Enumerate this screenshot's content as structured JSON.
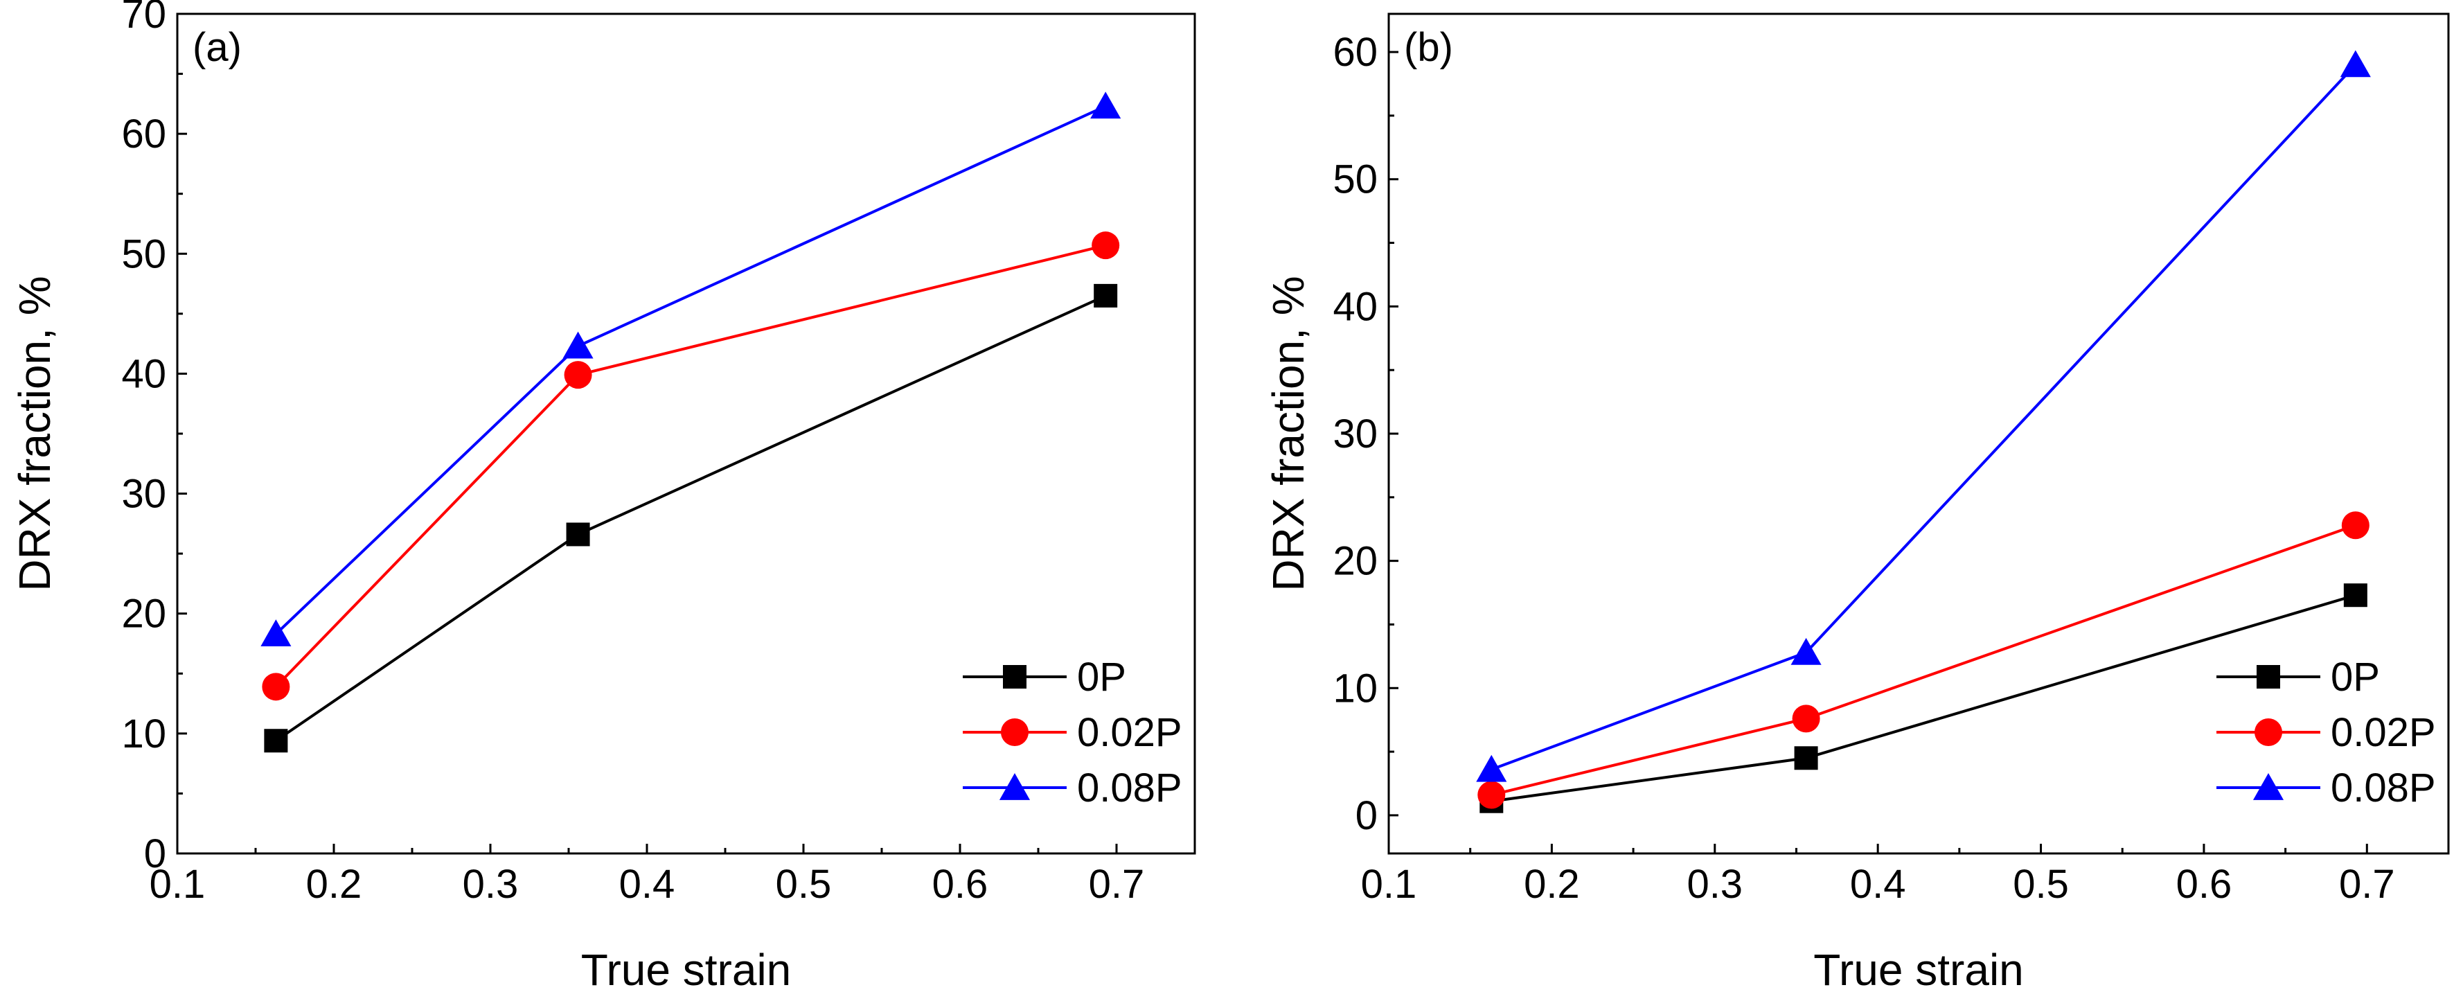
{
  "chart_data": [
    {
      "type": "line",
      "panel_label": "(a)",
      "xlabel": "True strain",
      "ylabel": "DRX fraction, %",
      "xlim": [
        0.1,
        0.75
      ],
      "ylim": [
        0,
        70
      ],
      "xticks": [
        0.1,
        0.2,
        0.3,
        0.4,
        0.5,
        0.6,
        0.7
      ],
      "xtick_labels": [
        "0.1",
        "0.2",
        "0.3",
        "0.4",
        "0.5",
        "0.6",
        "0.7"
      ],
      "yticks": [
        0,
        10,
        20,
        30,
        40,
        50,
        60,
        70
      ],
      "ytick_labels": [
        "0",
        "10",
        "20",
        "30",
        "40",
        "50",
        "60",
        "70"
      ],
      "x": [
        0.163,
        0.356,
        0.693
      ],
      "legend_position": "bottom-right",
      "series": [
        {
          "name": "0P",
          "color": "#000000",
          "marker": "square",
          "values": [
            9.4,
            26.6,
            46.5
          ]
        },
        {
          "name": "0.02P",
          "color": "#ff0000",
          "marker": "circle",
          "values": [
            13.9,
            39.9,
            50.7
          ]
        },
        {
          "name": "0.08P",
          "color": "#0000ff",
          "marker": "triangle",
          "values": [
            18.3,
            42.3,
            62.3
          ]
        }
      ]
    },
    {
      "type": "line",
      "panel_label": "(b)",
      "xlabel": "True strain",
      "ylabel": "DRX fraction, %",
      "xlim": [
        0.1,
        0.75
      ],
      "ylim": [
        -3,
        63
      ],
      "xticks": [
        0.1,
        0.2,
        0.3,
        0.4,
        0.5,
        0.6,
        0.7
      ],
      "xtick_labels": [
        "0.1",
        "0.2",
        "0.3",
        "0.4",
        "0.5",
        "0.6",
        "0.7"
      ],
      "yticks": [
        0,
        10,
        20,
        30,
        40,
        50,
        60
      ],
      "ytick_labels": [
        "0",
        "10",
        "20",
        "30",
        "40",
        "50",
        "60"
      ],
      "x": [
        0.163,
        0.356,
        0.693
      ],
      "legend_position": "bottom-right",
      "series": [
        {
          "name": "0P",
          "color": "#000000",
          "marker": "square",
          "values": [
            1.1,
            4.5,
            17.3
          ]
        },
        {
          "name": "0.02P",
          "color": "#ff0000",
          "marker": "circle",
          "values": [
            1.6,
            7.6,
            22.8
          ]
        },
        {
          "name": "0.08P",
          "color": "#0000ff",
          "marker": "triangle",
          "values": [
            3.6,
            12.8,
            59.0
          ]
        }
      ]
    }
  ]
}
